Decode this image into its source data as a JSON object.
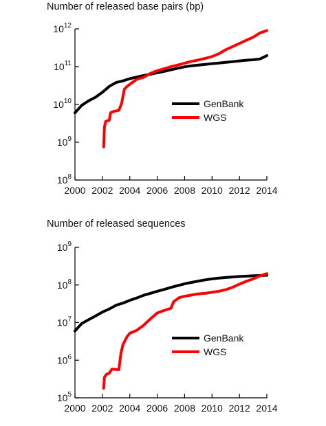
{
  "chart_data": [
    {
      "type": "line",
      "title": "Number of released base pairs (bp)",
      "xlabel": "",
      "ylabel": "",
      "y_scale": "log",
      "xlim": [
        2000,
        2014
      ],
      "ylim": [
        100000000.0,
        1000000000000.0
      ],
      "x_ticks": [
        "2000",
        "2002",
        "2004",
        "2006",
        "2008",
        "2010",
        "2012",
        "2014"
      ],
      "y_ticks": [
        {
          "base": "10",
          "exp": "8"
        },
        {
          "base": "10",
          "exp": "9"
        },
        {
          "base": "10",
          "exp": "10"
        },
        {
          "base": "10",
          "exp": "11"
        },
        {
          "base": "10",
          "exp": "12"
        }
      ],
      "legend_position": "middle-right",
      "series": [
        {
          "name": "GenBank",
          "color": "#000000",
          "points": [
            [
              2000.0,
              6000000000.0
            ],
            [
              2000.5,
              9500000000.0
            ],
            [
              2001.0,
              12500000000.0
            ],
            [
              2001.5,
              15500000000.0
            ],
            [
              2002.0,
              21000000000.0
            ],
            [
              2002.5,
              30000000000.0
            ],
            [
              2003.0,
              38000000000.0
            ],
            [
              2003.5,
              42000000000.0
            ],
            [
              2004.0,
              48000000000.0
            ],
            [
              2004.5,
              53000000000.0
            ],
            [
              2005.0,
              58000000000.0
            ],
            [
              2005.5,
              63000000000.0
            ],
            [
              2006.0,
              69000000000.0
            ],
            [
              2006.5,
              75000000000.0
            ],
            [
              2007.0,
              83000000000.0
            ],
            [
              2007.5,
              91000000000.0
            ],
            [
              2008.0,
              99000000000.0
            ],
            [
              2008.5,
              105000000000.0
            ],
            [
              2009.0,
              110000000000.0
            ],
            [
              2009.5,
              115000000000.0
            ],
            [
              2010.0,
              120000000000.0
            ],
            [
              2010.5,
              125000000000.0
            ],
            [
              2011.0,
              130000000000.0
            ],
            [
              2011.5,
              135000000000.0
            ],
            [
              2012.0,
              142000000000.0
            ],
            [
              2012.5,
              148000000000.0
            ],
            [
              2013.0,
              152000000000.0
            ],
            [
              2013.5,
              160000000000.0
            ],
            [
              2014.0,
              195000000000.0
            ]
          ]
        },
        {
          "name": "WGS",
          "color": "#ff0000",
          "points": [
            [
              2002.1,
              750000000.0
            ],
            [
              2002.15,
              2500000000.0
            ],
            [
              2002.25,
              3600000000.0
            ],
            [
              2002.5,
              3800000000.0
            ],
            [
              2002.6,
              6000000000.0
            ],
            [
              2002.8,
              6500000000.0
            ],
            [
              2003.2,
              7000000000.0
            ],
            [
              2003.4,
              10500000000.0
            ],
            [
              2003.6,
              25000000000.0
            ],
            [
              2003.8,
              30000000000.0
            ],
            [
              2004.0,
              34000000000.0
            ],
            [
              2004.5,
              46000000000.0
            ],
            [
              2005.0,
              52000000000.0
            ],
            [
              2005.5,
              66000000000.0
            ],
            [
              2006.0,
              78000000000.0
            ],
            [
              2006.5,
              88000000000.0
            ],
            [
              2007.0,
              100000000000.0
            ],
            [
              2007.5,
              110000000000.0
            ],
            [
              2008.0,
              124000000000.0
            ],
            [
              2008.5,
              138000000000.0
            ],
            [
              2009.0,
              150000000000.0
            ],
            [
              2009.5,
              165000000000.0
            ],
            [
              2010.0,
              185000000000.0
            ],
            [
              2010.5,
              220000000000.0
            ],
            [
              2011.0,
              280000000000.0
            ],
            [
              2011.5,
              340000000000.0
            ],
            [
              2012.0,
              410000000000.0
            ],
            [
              2012.5,
              500000000000.0
            ],
            [
              2013.0,
              600000000000.0
            ],
            [
              2013.5,
              780000000000.0
            ],
            [
              2014.0,
              900000000000.0
            ]
          ]
        }
      ]
    },
    {
      "type": "line",
      "title": "Number of released sequences",
      "xlabel": "",
      "ylabel": "",
      "y_scale": "log",
      "xlim": [
        2000,
        2014
      ],
      "ylim": [
        100000.0,
        1000000000.0
      ],
      "x_ticks": [
        "2000",
        "2002",
        "2004",
        "2006",
        "2008",
        "2010",
        "2012",
        "2014"
      ],
      "y_ticks": [
        {
          "base": "10",
          "exp": "5"
        },
        {
          "base": "10",
          "exp": "6"
        },
        {
          "base": "10",
          "exp": "7"
        },
        {
          "base": "10",
          "exp": "8"
        },
        {
          "base": "10",
          "exp": "9"
        }
      ],
      "legend_position": "middle-right",
      "series": [
        {
          "name": "GenBank",
          "color": "#000000",
          "points": [
            [
              2000.0,
              6000000.0
            ],
            [
              2000.5,
              9500000.0
            ],
            [
              2001.0,
              12000000.0
            ],
            [
              2001.5,
              15000000.0
            ],
            [
              2002.0,
              19000000.0
            ],
            [
              2002.5,
              23000000.0
            ],
            [
              2003.0,
              29000000.0
            ],
            [
              2003.5,
              33000000.0
            ],
            [
              2004.0,
              39000000.0
            ],
            [
              2004.5,
              45000000.0
            ],
            [
              2005.0,
              53000000.0
            ],
            [
              2005.5,
              60000000.0
            ],
            [
              2006.0,
              68000000.0
            ],
            [
              2006.5,
              76000000.0
            ],
            [
              2007.0,
              86000000.0
            ],
            [
              2007.5,
              96000000.0
            ],
            [
              2008.0,
              107000000.0
            ],
            [
              2008.5,
              117000000.0
            ],
            [
              2009.0,
              127000000.0
            ],
            [
              2009.5,
              137000000.0
            ],
            [
              2010.0,
              145000000.0
            ],
            [
              2010.5,
              152000000.0
            ],
            [
              2011.0,
              158000000.0
            ],
            [
              2011.5,
              163000000.0
            ],
            [
              2012.0,
              168000000.0
            ],
            [
              2012.5,
              172000000.0
            ],
            [
              2013.0,
              175000000.0
            ],
            [
              2013.5,
              178000000.0
            ],
            [
              2014.0,
              182000000.0
            ]
          ]
        },
        {
          "name": "WGS",
          "color": "#ff0000",
          "points": [
            [
              2002.1,
              180000.0
            ],
            [
              2002.15,
              350000.0
            ],
            [
              2002.3,
              420000.0
            ],
            [
              2002.5,
              450000.0
            ],
            [
              2002.7,
              580000.0
            ],
            [
              2003.2,
              560000.0
            ],
            [
              2003.35,
              1500000.0
            ],
            [
              2003.5,
              2600000.0
            ],
            [
              2003.8,
              4200000.0
            ],
            [
              2004.0,
              5200000.0
            ],
            [
              2004.5,
              6200000.0
            ],
            [
              2005.0,
              8400000.0
            ],
            [
              2005.5,
              12500000.0
            ],
            [
              2006.0,
              18000000.0
            ],
            [
              2006.5,
              21000000.0
            ],
            [
              2007.0,
              24000000.0
            ],
            [
              2007.2,
              36000000.0
            ],
            [
              2007.6,
              46000000.0
            ],
            [
              2008.0,
              50000000.0
            ],
            [
              2008.5,
              54000000.0
            ],
            [
              2009.0,
              58000000.0
            ],
            [
              2009.5,
              60000000.0
            ],
            [
              2010.0,
              64000000.0
            ],
            [
              2010.5,
              68000000.0
            ],
            [
              2011.0,
              75000000.0
            ],
            [
              2011.5,
              87000000.0
            ],
            [
              2012.0,
              105000000.0
            ],
            [
              2012.5,
              125000000.0
            ],
            [
              2013.0,
              145000000.0
            ],
            [
              2013.5,
              175000000.0
            ],
            [
              2014.0,
              200000000.0
            ]
          ]
        }
      ]
    }
  ]
}
